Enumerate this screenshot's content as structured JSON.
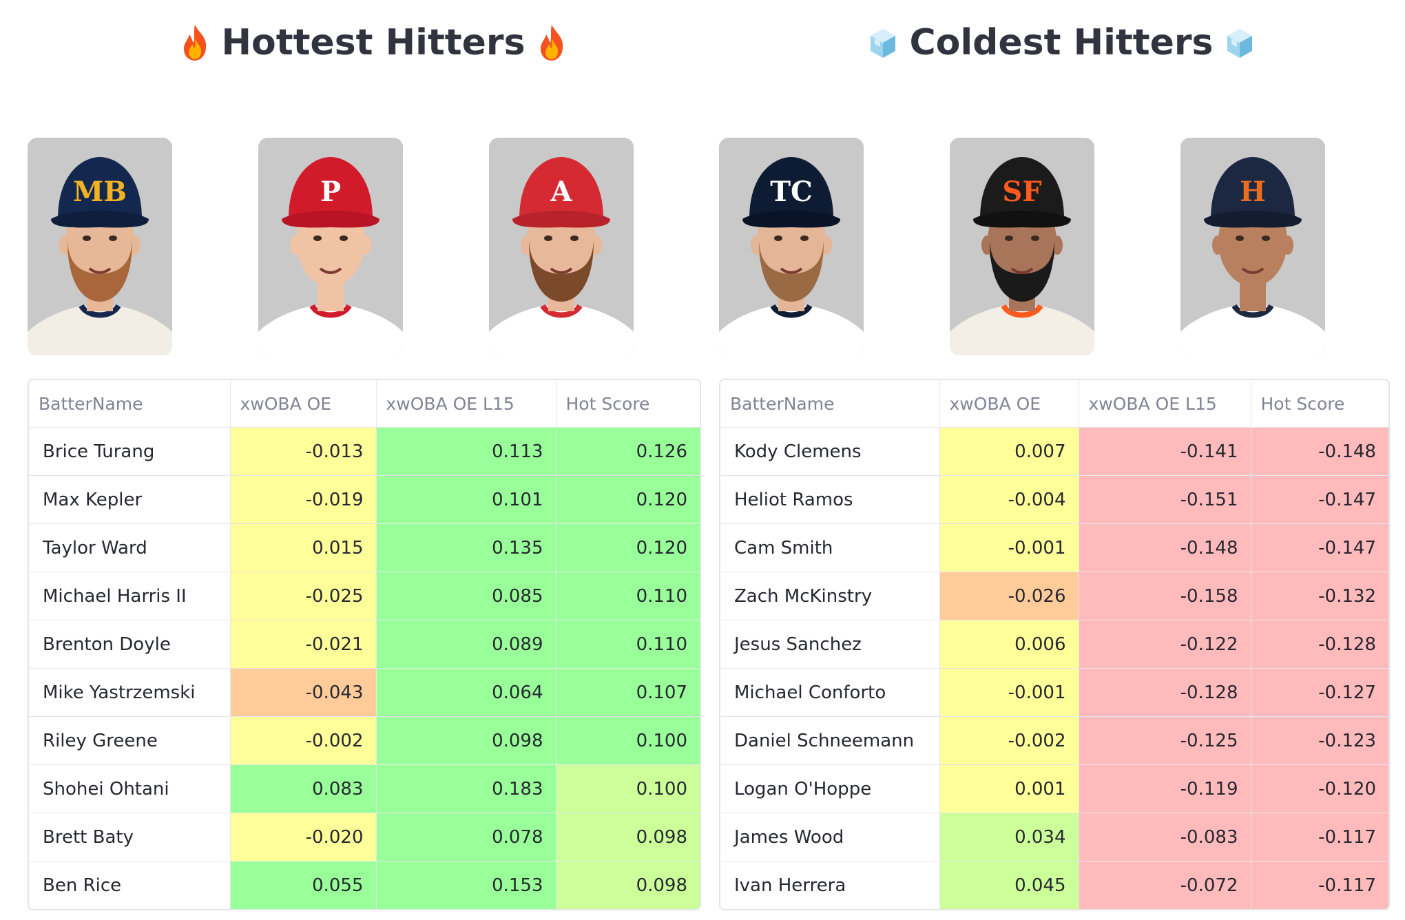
{
  "colors": {
    "yellow": "#ffff99",
    "orange": "#ffcc99",
    "green": "#99ff99",
    "lightgreen": "#ccff99",
    "red": "#ffbbbb"
  },
  "hot": {
    "title": "Hottest Hitters",
    "emoji_icon": "fire-icon",
    "players": [
      {
        "team": "Brewers",
        "cap": "#14274e",
        "brim": "#0f1e3d",
        "logo": "#f0b323",
        "mark": "MB",
        "beard": "#a8663a",
        "skin": "#e6b898",
        "jersey": "#f2eee6",
        "trim": "#14274e"
      },
      {
        "team": "Phillies",
        "cap": "#d11a2a",
        "brim": "#b81425",
        "logo": "#ffffff",
        "mark": "P",
        "beard": null,
        "skin": "#efc3a4",
        "jersey": "#ffffff",
        "trim": "#d11a2a"
      },
      {
        "team": "Angels",
        "cap": "#d62a32",
        "brim": "#b8222a",
        "logo": "#ffffff",
        "mark": "A",
        "beard": "#7a4a2a",
        "skin": "#e8b89a",
        "jersey": "#ffffff",
        "trim": "#d62a32"
      }
    ],
    "table": {
      "columns": [
        "BatterName",
        "xwOBA OE",
        "xwOBA OE L15",
        "Hot Score"
      ],
      "rows": [
        {
          "name": "Brice Turang",
          "values": [
            "-0.013",
            "0.113",
            "0.126"
          ],
          "colors": [
            "yellow",
            "green",
            "green"
          ]
        },
        {
          "name": "Max Kepler",
          "values": [
            "-0.019",
            "0.101",
            "0.120"
          ],
          "colors": [
            "yellow",
            "green",
            "green"
          ]
        },
        {
          "name": "Taylor Ward",
          "values": [
            "0.015",
            "0.135",
            "0.120"
          ],
          "colors": [
            "yellow",
            "green",
            "green"
          ]
        },
        {
          "name": "Michael Harris II",
          "values": [
            "-0.025",
            "0.085",
            "0.110"
          ],
          "colors": [
            "yellow",
            "green",
            "green"
          ]
        },
        {
          "name": "Brenton Doyle",
          "values": [
            "-0.021",
            "0.089",
            "0.110"
          ],
          "colors": [
            "yellow",
            "green",
            "green"
          ]
        },
        {
          "name": "Mike Yastrzemski",
          "values": [
            "-0.043",
            "0.064",
            "0.107"
          ],
          "colors": [
            "orange",
            "green",
            "green"
          ]
        },
        {
          "name": "Riley Greene",
          "values": [
            "-0.002",
            "0.098",
            "0.100"
          ],
          "colors": [
            "yellow",
            "green",
            "green"
          ]
        },
        {
          "name": "Shohei Ohtani",
          "values": [
            "0.083",
            "0.183",
            "0.100"
          ],
          "colors": [
            "green",
            "green",
            "lightgreen"
          ]
        },
        {
          "name": "Brett Baty",
          "values": [
            "-0.020",
            "0.078",
            "0.098"
          ],
          "colors": [
            "yellow",
            "green",
            "lightgreen"
          ]
        },
        {
          "name": "Ben Rice",
          "values": [
            "0.055",
            "0.153",
            "0.098"
          ],
          "colors": [
            "green",
            "green",
            "lightgreen"
          ]
        }
      ]
    }
  },
  "cold": {
    "title": "Coldest Hitters",
    "emoji_icon": "ice-cube-icon",
    "players": [
      {
        "team": "Twins",
        "cap": "#0d1b33",
        "brim": "#0a1428",
        "logo": "#ffffff",
        "mark": "TC",
        "beard": "#9a6a44",
        "skin": "#e4b596",
        "jersey": "#ffffff",
        "trim": "#0d1b33"
      },
      {
        "team": "Giants",
        "cap": "#1b1b1b",
        "brim": "#111111",
        "logo": "#fd5a1e",
        "mark": "SF",
        "beard": "#1a1a1a",
        "skin": "#a8755a",
        "jersey": "#f4efe6",
        "trim": "#fd5a1e"
      },
      {
        "team": "Astros",
        "cap": "#1c2841",
        "brim": "#141d30",
        "logo": "#eb6e1f",
        "mark": "H",
        "beard": null,
        "skin": "#b8805e",
        "jersey": "#ffffff",
        "trim": "#1c2841"
      }
    ],
    "table": {
      "columns": [
        "BatterName",
        "xwOBA OE",
        "xwOBA OE L15",
        "Hot Score"
      ],
      "rows": [
        {
          "name": "Kody Clemens",
          "values": [
            "0.007",
            "-0.141",
            "-0.148"
          ],
          "colors": [
            "yellow",
            "red",
            "red"
          ]
        },
        {
          "name": "Heliot Ramos",
          "values": [
            "-0.004",
            "-0.151",
            "-0.147"
          ],
          "colors": [
            "yellow",
            "red",
            "red"
          ]
        },
        {
          "name": "Cam Smith",
          "values": [
            "-0.001",
            "-0.148",
            "-0.147"
          ],
          "colors": [
            "yellow",
            "red",
            "red"
          ]
        },
        {
          "name": "Zach McKinstry",
          "values": [
            "-0.026",
            "-0.158",
            "-0.132"
          ],
          "colors": [
            "orange",
            "red",
            "red"
          ]
        },
        {
          "name": "Jesus Sanchez",
          "values": [
            "0.006",
            "-0.122",
            "-0.128"
          ],
          "colors": [
            "yellow",
            "red",
            "red"
          ]
        },
        {
          "name": "Michael Conforto",
          "values": [
            "-0.001",
            "-0.128",
            "-0.127"
          ],
          "colors": [
            "yellow",
            "red",
            "red"
          ]
        },
        {
          "name": "Daniel Schneemann",
          "values": [
            "-0.002",
            "-0.125",
            "-0.123"
          ],
          "colors": [
            "yellow",
            "red",
            "red"
          ]
        },
        {
          "name": "Logan O'Hoppe",
          "values": [
            "0.001",
            "-0.119",
            "-0.120"
          ],
          "colors": [
            "yellow",
            "red",
            "red"
          ]
        },
        {
          "name": "James Wood",
          "values": [
            "0.034",
            "-0.083",
            "-0.117"
          ],
          "colors": [
            "lightgreen",
            "red",
            "red"
          ]
        },
        {
          "name": "Ivan Herrera",
          "values": [
            "0.045",
            "-0.072",
            "-0.117"
          ],
          "colors": [
            "lightgreen",
            "red",
            "red"
          ]
        }
      ]
    }
  }
}
